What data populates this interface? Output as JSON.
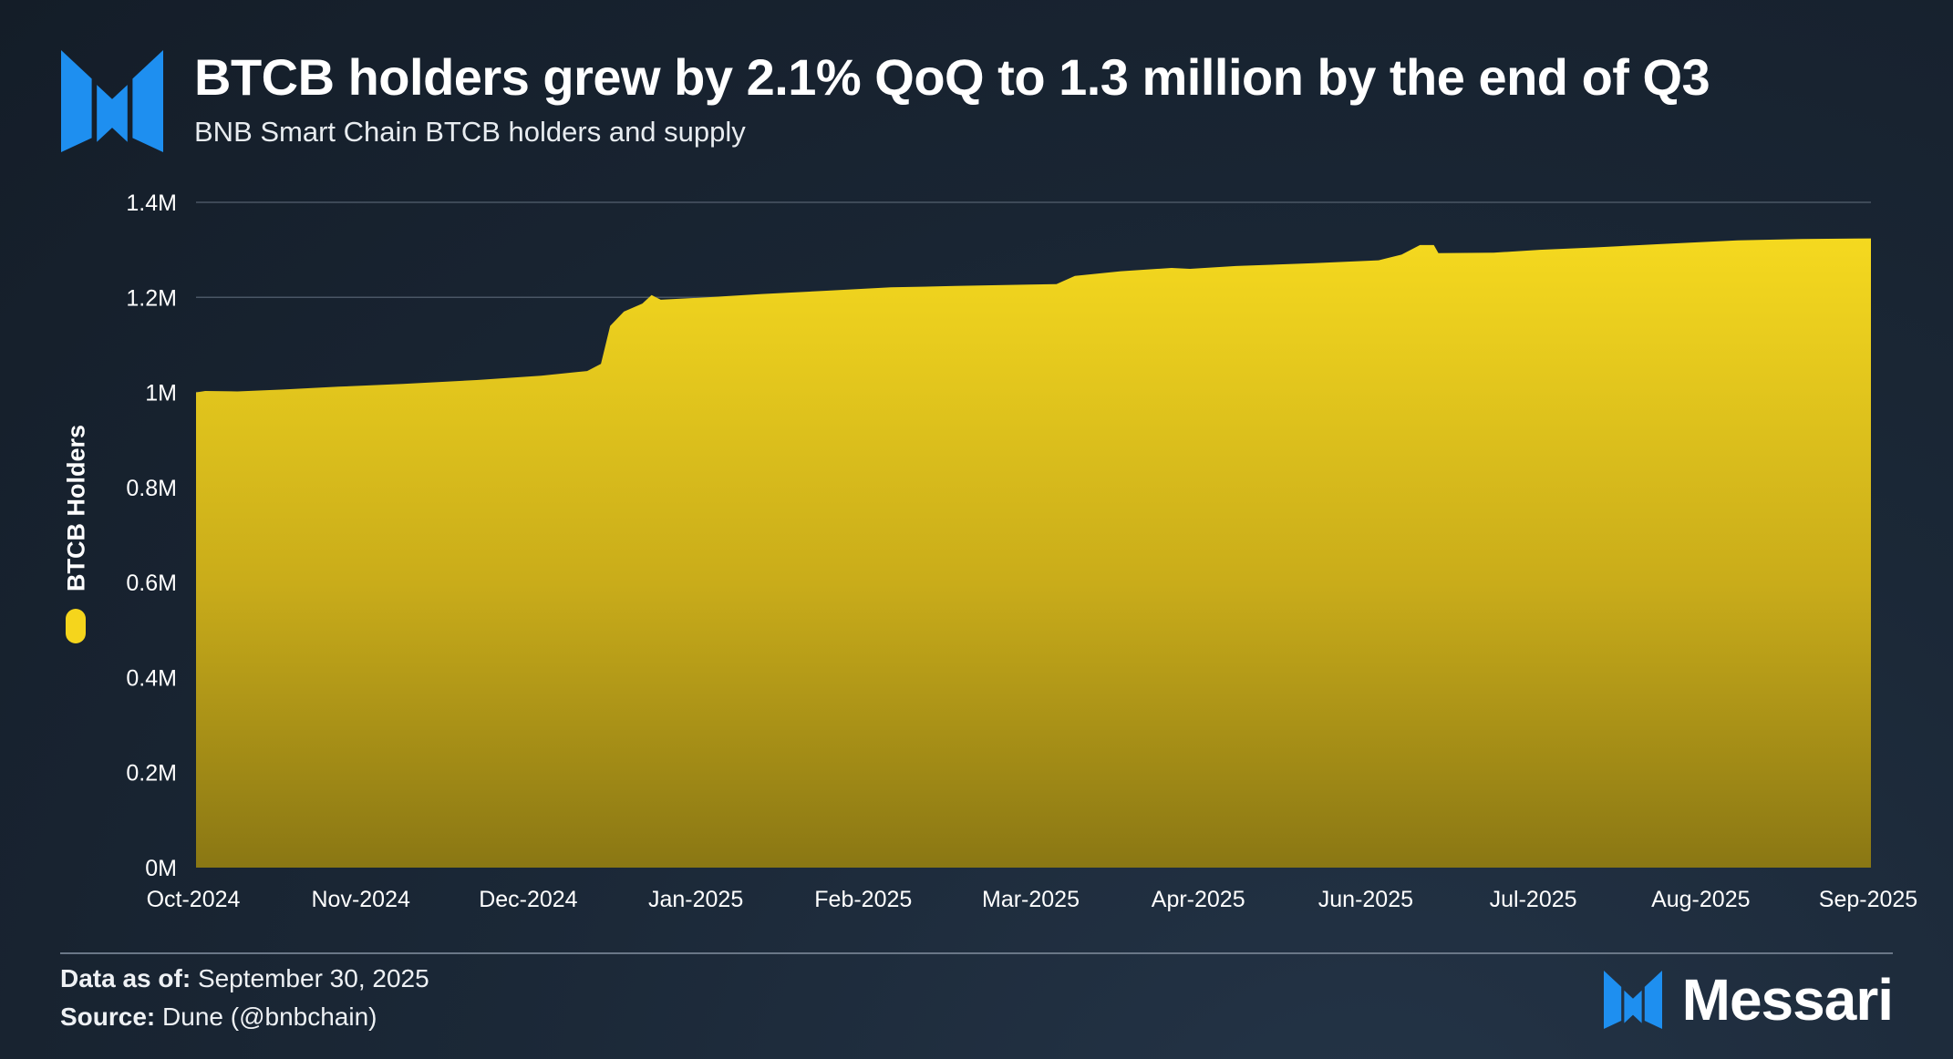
{
  "header": {
    "title": "BTCB holders grew by 2.1% QoQ to 1.3 million by the end of Q3",
    "subtitle": "BNB Smart Chain BTCB holders and supply"
  },
  "footer": {
    "data_as_of_label": "Data as of:",
    "data_as_of_value": "September 30, 2025",
    "source_label": "Source:",
    "source_value": "Dune (@bnbchain)",
    "brand": "Messari"
  },
  "colors": {
    "accent": "#f5d51c",
    "logo_blue": "#1e8ff0",
    "background": "#1b2837"
  },
  "chart_data": {
    "type": "area",
    "title": "BTCB holders grew by 2.1% QoQ to 1.3 million by the end of Q3",
    "subtitle": "BNB Smart Chain BTCB holders and supply",
    "xlabel": "",
    "ylabel": "BTCB Holders",
    "ylim": [
      0,
      1400000
    ],
    "grid": true,
    "legend": "left",
    "x_tick_labels": [
      "Oct-2024",
      "Nov-2024",
      "Dec-2024",
      "Jan-2025",
      "Feb-2025",
      "Mar-2025",
      "Apr-2025",
      "Jun-2025",
      "Jul-2025",
      "Aug-2025",
      "Sep-2025"
    ],
    "y_ticks": [
      {
        "value": 0,
        "label": "0M"
      },
      {
        "value": 200000,
        "label": "0.2M"
      },
      {
        "value": 400000,
        "label": "0.4M"
      },
      {
        "value": 600000,
        "label": "0.6M"
      },
      {
        "value": 800000,
        "label": "0.8M"
      },
      {
        "value": 1000000,
        "label": "1M"
      },
      {
        "value": 1200000,
        "label": "1.2M"
      },
      {
        "value": 1400000,
        "label": "1.4M"
      }
    ],
    "series": [
      {
        "name": "BTCB Holders",
        "color": "#f5d51c",
        "points": [
          {
            "x": "2024-10-01",
            "y": 1000000
          },
          {
            "x": "2024-10-03",
            "y": 1003000
          },
          {
            "x": "2024-10-10",
            "y": 1002000
          },
          {
            "x": "2024-10-20",
            "y": 1006000
          },
          {
            "x": "2024-11-01",
            "y": 1012000
          },
          {
            "x": "2024-11-15",
            "y": 1018000
          },
          {
            "x": "2024-12-01",
            "y": 1026000
          },
          {
            "x": "2024-12-15",
            "y": 1035000
          },
          {
            "x": "2024-12-25",
            "y": 1045000
          },
          {
            "x": "2024-12-28",
            "y": 1060000
          },
          {
            "x": "2024-12-30",
            "y": 1140000
          },
          {
            "x": "2025-01-02",
            "y": 1170000
          },
          {
            "x": "2025-01-06",
            "y": 1187000
          },
          {
            "x": "2025-01-08",
            "y": 1205000
          },
          {
            "x": "2025-01-10",
            "y": 1195000
          },
          {
            "x": "2025-01-20",
            "y": 1200000
          },
          {
            "x": "2025-02-01",
            "y": 1207000
          },
          {
            "x": "2025-02-15",
            "y": 1214000
          },
          {
            "x": "2025-03-01",
            "y": 1221000
          },
          {
            "x": "2025-03-15",
            "y": 1224000
          },
          {
            "x": "2025-03-31",
            "y": 1227000
          },
          {
            "x": "2025-04-06",
            "y": 1228000
          },
          {
            "x": "2025-04-10",
            "y": 1245000
          },
          {
            "x": "2025-04-20",
            "y": 1255000
          },
          {
            "x": "2025-05-01",
            "y": 1262000
          },
          {
            "x": "2025-05-05",
            "y": 1260000
          },
          {
            "x": "2025-05-15",
            "y": 1266000
          },
          {
            "x": "2025-06-01",
            "y": 1272000
          },
          {
            "x": "2025-06-15",
            "y": 1278000
          },
          {
            "x": "2025-06-20",
            "y": 1290000
          },
          {
            "x": "2025-06-24",
            "y": 1310000
          },
          {
            "x": "2025-06-27",
            "y": 1310000
          },
          {
            "x": "2025-06-28",
            "y": 1293000
          },
          {
            "x": "2025-07-10",
            "y": 1294000
          },
          {
            "x": "2025-07-20",
            "y": 1300000
          },
          {
            "x": "2025-08-01",
            "y": 1305000
          },
          {
            "x": "2025-08-15",
            "y": 1312000
          },
          {
            "x": "2025-09-01",
            "y": 1320000
          },
          {
            "x": "2025-09-15",
            "y": 1323000
          },
          {
            "x": "2025-09-30",
            "y": 1324000
          }
        ]
      }
    ]
  }
}
